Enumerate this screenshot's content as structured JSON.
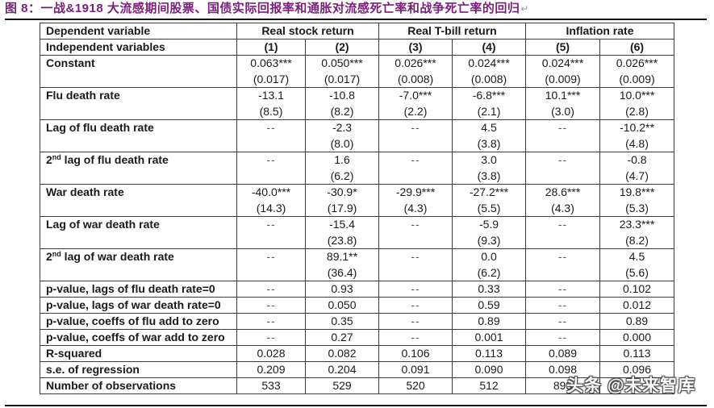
{
  "caption": {
    "text": "图 8：一战&1918 大流感期间股票、国债实际回报率和通胀对流感死亡率和战争死亡率的回归",
    "return_mark": "↵",
    "color": "#7a1f7a"
  },
  "table": {
    "header": {
      "dependent_label": "Dependent variable",
      "independent_label": "Independent variables",
      "groups": [
        {
          "label": "Real stock return",
          "span": 2
        },
        {
          "label": "Real T-bill return",
          "span": 2
        },
        {
          "label": "Inflation rate",
          "span": 2
        }
      ],
      "columns": [
        "(1)",
        "(2)",
        "(3)",
        "(4)",
        "(5)",
        "(6)"
      ]
    },
    "coef_rows": [
      {
        "label": "Constant",
        "sup": "",
        "label_rest": "",
        "coef": [
          "0.063***",
          "0.050***",
          "0.026***",
          "0.024***",
          "0.024***",
          "0.026***"
        ],
        "se": [
          "(0.017)",
          "(0.017)",
          "(0.008)",
          "(0.008)",
          "(0.009)",
          "(0.009)"
        ]
      },
      {
        "label": "Flu death rate",
        "sup": "",
        "label_rest": "",
        "coef": [
          "-13.1",
          "-10.8",
          "-7.0***",
          "-6.8***",
          "10.1***",
          "10.0***"
        ],
        "se": [
          "(8.5)",
          "(8.2)",
          "(2.2)",
          "(2.1)",
          "(3.0)",
          "(2.8)"
        ]
      },
      {
        "label": "Lag of flu death rate",
        "sup": "",
        "label_rest": "",
        "coef": [
          "--",
          "-2.3",
          "--",
          "4.5",
          "--",
          "-10.2**"
        ],
        "se": [
          "",
          "(8.0)",
          "",
          "(3.8)",
          "",
          "(4.8)"
        ]
      },
      {
        "label": "2",
        "sup": "nd",
        "label_rest": " lag of flu death rate",
        "coef": [
          "--",
          "1.6",
          "--",
          "3.0",
          "--",
          "-0.8"
        ],
        "se": [
          "",
          "(6.2)",
          "",
          "(3.8)",
          "",
          "(4.7)"
        ]
      },
      {
        "label": "War death rate",
        "sup": "",
        "label_rest": "",
        "coef": [
          "-40.0***",
          "-30.9*",
          "-29.9***",
          "-27.2***",
          "28.6***",
          "19.8***"
        ],
        "se": [
          "(14.3)",
          "(17.9)",
          "(4.3)",
          "(5.5)",
          "(4.3)",
          "(5.3)"
        ]
      },
      {
        "label": "Lag of war death rate",
        "sup": "",
        "label_rest": "",
        "coef": [
          "--",
          "-15.4",
          "--",
          "-5.9",
          "--",
          "23.3***"
        ],
        "se": [
          "",
          "(23.8)",
          "",
          "(9.3)",
          "",
          "(8.2)"
        ]
      },
      {
        "label": "2",
        "sup": "nd",
        "label_rest": " lag of war death rate",
        "coef": [
          "--",
          "89.1**",
          "--",
          "0.0",
          "--",
          "4.5"
        ],
        "se": [
          "",
          "(36.4)",
          "",
          "(6.2)",
          "",
          "(5.6)"
        ]
      }
    ],
    "stat_rows": [
      {
        "label": "p-value, lags of flu death rate=0",
        "values": [
          "--",
          "0.93",
          "--",
          "0.33",
          "--",
          "0.102"
        ]
      },
      {
        "label": "p-value, lags of war death rate=0",
        "values": [
          "--",
          "0.050",
          "--",
          "0.59",
          "--",
          "0.012"
        ]
      },
      {
        "label": "p-value, coeffs of flu add to zero",
        "values": [
          "--",
          "0.35",
          "--",
          "0.89",
          "--",
          "0.89"
        ]
      },
      {
        "label": "p-value, coeffs of war add to zero",
        "values": [
          "--",
          "0.27",
          "--",
          "0.001",
          "--",
          "0.000"
        ]
      },
      {
        "label": "R-squared",
        "values": [
          "0.028",
          "0.082",
          "0.106",
          "0.113",
          "0.089",
          "0.113"
        ]
      },
      {
        "label": "s.e. of regression",
        "values": [
          "0.209",
          "0.204",
          "0.091",
          "0.090",
          "0.098",
          "0.096"
        ]
      },
      {
        "label": "Number of observations",
        "values": [
          "533",
          "529",
          "520",
          "512",
          "893",
          ""
        ]
      }
    ]
  },
  "watermark": {
    "text": "头条 @未来智库"
  }
}
